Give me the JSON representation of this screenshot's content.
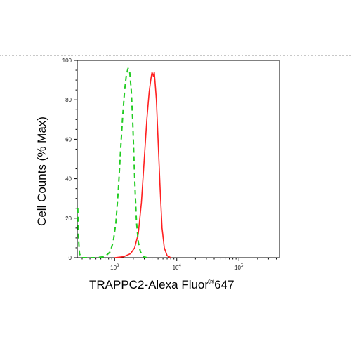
{
  "chart_data": {
    "type": "line",
    "xlabel_main": "TRAPPC2-Alexa Fluor",
    "xlabel_mark": "®",
    "xlabel_suffix": "647",
    "ylabel": "Cell Counts (% Max)",
    "x_scale": "log",
    "xlim": [
      250,
      450000
    ],
    "ylim": [
      0,
      100
    ],
    "yticks": [
      0,
      20,
      40,
      60,
      80,
      100
    ],
    "xticks": [
      {
        "base": "10",
        "exp": "3",
        "value": 1000
      },
      {
        "base": "10",
        "exp": "4",
        "value": 10000
      },
      {
        "base": "10",
        "exp": "5",
        "value": 100000
      }
    ],
    "grid": false,
    "series": [
      {
        "color": "#ff2020",
        "style": "solid",
        "points": [
          [
            1000,
            0
          ],
          [
            1400,
            0.5
          ],
          [
            1800,
            2
          ],
          [
            2100,
            5
          ],
          [
            2400,
            12
          ],
          [
            2700,
            28
          ],
          [
            3000,
            50
          ],
          [
            3300,
            70
          ],
          [
            3600,
            84
          ],
          [
            3850,
            91
          ],
          [
            4000,
            94
          ],
          [
            4200,
            92
          ],
          [
            4350,
            94
          ],
          [
            4500,
            88
          ],
          [
            4700,
            80
          ],
          [
            5000,
            60
          ],
          [
            5400,
            35
          ],
          [
            5800,
            15
          ],
          [
            6300,
            5
          ],
          [
            7000,
            1
          ],
          [
            8000,
            0
          ]
        ]
      },
      {
        "color": "#22cc22",
        "style": "dashed",
        "points": [
          [
            255,
            25
          ],
          [
            262,
            10
          ],
          [
            272,
            2
          ],
          [
            290,
            0
          ],
          [
            500,
            0
          ],
          [
            700,
            0.5
          ],
          [
            850,
            3
          ],
          [
            950,
            8
          ],
          [
            1050,
            18
          ],
          [
            1150,
            35
          ],
          [
            1250,
            55
          ],
          [
            1350,
            72
          ],
          [
            1450,
            85
          ],
          [
            1550,
            93
          ],
          [
            1650,
            96
          ],
          [
            1750,
            94
          ],
          [
            1850,
            85
          ],
          [
            1950,
            70
          ],
          [
            2050,
            50
          ],
          [
            2150,
            32
          ],
          [
            2250,
            18
          ],
          [
            2400,
            8
          ],
          [
            2600,
            3
          ],
          [
            2900,
            0.5
          ],
          [
            3300,
            0
          ]
        ]
      }
    ]
  }
}
